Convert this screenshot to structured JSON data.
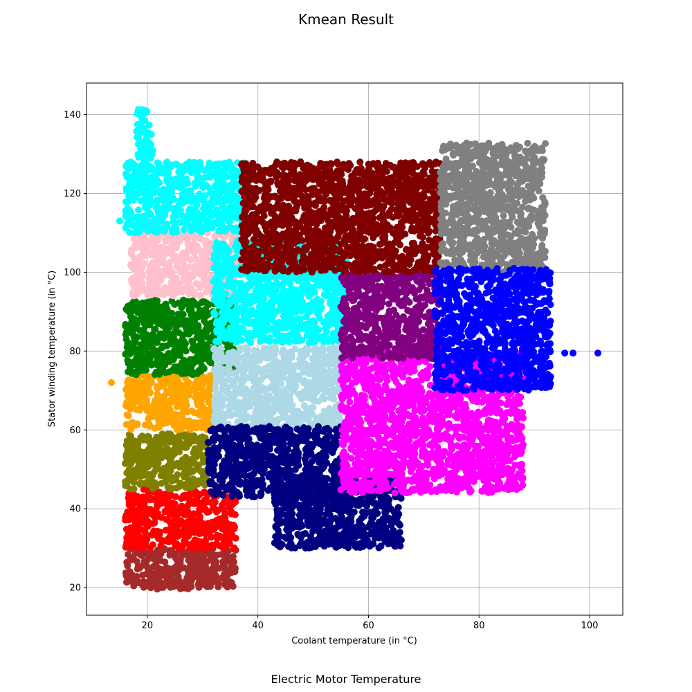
{
  "figure": {
    "title": "Kmean Result",
    "caption": "Electric Motor Temperature"
  },
  "chart_data": {
    "type": "scatter",
    "xlabel": "Coolant temperature (in °C)",
    "ylabel": "Stator winding temperature (in °C)",
    "xlim": [
      9,
      106
    ],
    "ylim": [
      13,
      148
    ],
    "xticks": [
      20,
      40,
      60,
      80,
      100
    ],
    "yticks": [
      20,
      40,
      60,
      80,
      100,
      120,
      140
    ],
    "grid": true,
    "clusters": [
      {
        "color": "#a52a2a",
        "regions": [
          [
            16,
            20,
            36,
            30
          ],
          [
            20,
            19.5,
            28,
            23
          ]
        ],
        "outliers": [
          [
            36,
            29.5
          ]
        ]
      },
      {
        "color": "#ff0000",
        "regions": [
          [
            16,
            30,
            36,
            45
          ]
        ]
      },
      {
        "color": "#808000",
        "regions": [
          [
            16,
            45,
            31,
            59
          ]
        ]
      },
      {
        "color": "#ffa500",
        "regions": [
          [
            16,
            60,
            32,
            74
          ]
        ],
        "outliers": [
          [
            13.5,
            72
          ]
        ]
      },
      {
        "color": "#008000",
        "regions": [
          [
            16,
            74,
            36,
            93
          ]
        ]
      },
      {
        "color": "#ffc0cb",
        "regions": [
          [
            17,
            94,
            36,
            110
          ]
        ]
      },
      {
        "color": "#00ffff",
        "regions": [
          [
            16,
            110,
            38,
            128
          ],
          [
            18,
            128,
            21,
            141.5
          ],
          [
            32,
            82,
            56,
            108
          ]
        ],
        "outliers": [
          [
            15,
            113
          ]
        ]
      },
      {
        "color": "#add8e6",
        "regions": [
          [
            32,
            60,
            55,
            81
          ]
        ]
      },
      {
        "color": "#000080",
        "regions": [
          [
            31,
            43,
            55,
            61
          ],
          [
            43,
            30,
            66,
            48
          ]
        ]
      },
      {
        "color": "#ff00ff",
        "regions": [
          [
            55,
            44,
            88,
            80
          ]
        ],
        "outliers": [
          [
            62,
            48
          ]
        ]
      },
      {
        "color": "#800080",
        "regions": [
          [
            55,
            78,
            73,
            100
          ]
        ]
      },
      {
        "color": "#800000",
        "regions": [
          [
            37,
            100,
            73,
            128
          ]
        ]
      },
      {
        "color": "#808080",
        "regions": [
          [
            73,
            100,
            92,
            133
          ]
        ]
      },
      {
        "color": "#0000ff",
        "regions": [
          [
            72,
            70,
            93,
            101
          ]
        ],
        "outliers": [
          [
            95.5,
            79.5
          ],
          [
            97,
            79.5
          ],
          [
            101.5,
            79.5
          ]
        ]
      }
    ]
  }
}
